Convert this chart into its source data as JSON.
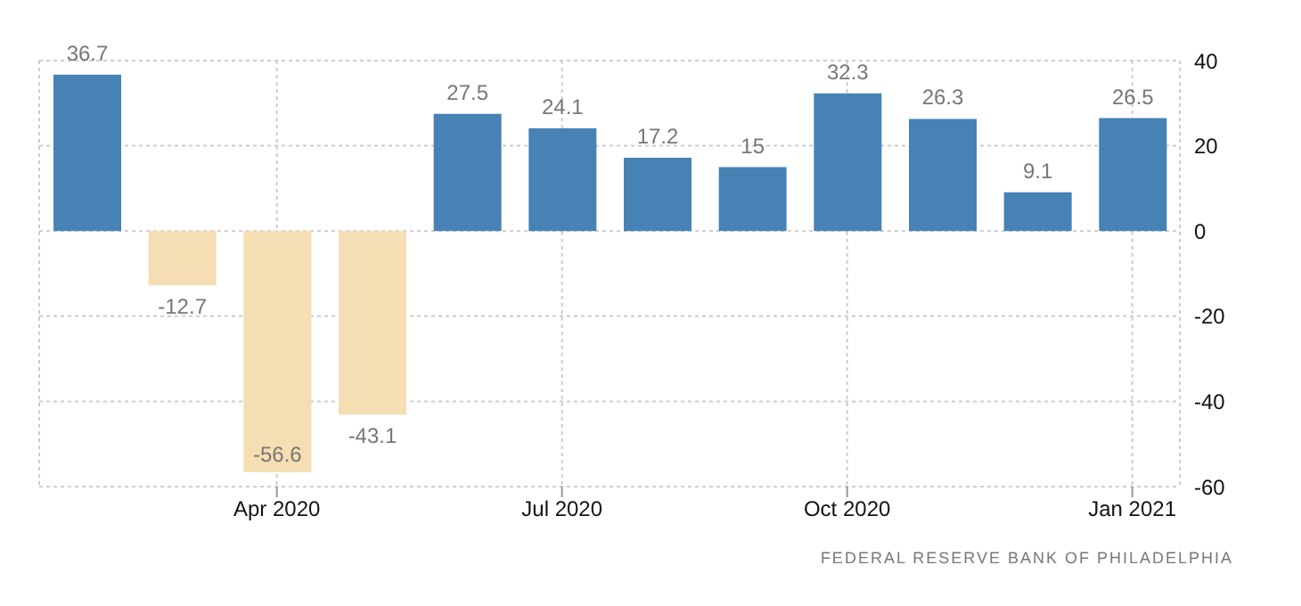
{
  "chart_data": {
    "type": "bar",
    "categories": [
      null,
      null,
      "Apr 2020",
      null,
      null,
      "Jul 2020",
      null,
      null,
      "Oct 2020",
      null,
      null,
      "Jan 2021"
    ],
    "values": [
      36.7,
      -12.7,
      -56.6,
      -43.1,
      27.5,
      24.1,
      17.2,
      15,
      32.3,
      26.3,
      9.1,
      26.5
    ],
    "colors": [
      "#4682b4",
      "#f5deb3",
      "#f5deb3",
      "#f5deb3",
      "#4682b4",
      "#4682b4",
      "#4682b4",
      "#4682b4",
      "#4682b4",
      "#4682b4",
      "#4682b4",
      "#4682b4"
    ],
    "ylim": [
      -60,
      40
    ],
    "yticks": [
      -60,
      -40,
      -20,
      0,
      20,
      40
    ],
    "grid": true,
    "data_labels": true,
    "annotations": [
      "FEDERAL RESERVE BANK OF PHILADELPHIA"
    ]
  }
}
